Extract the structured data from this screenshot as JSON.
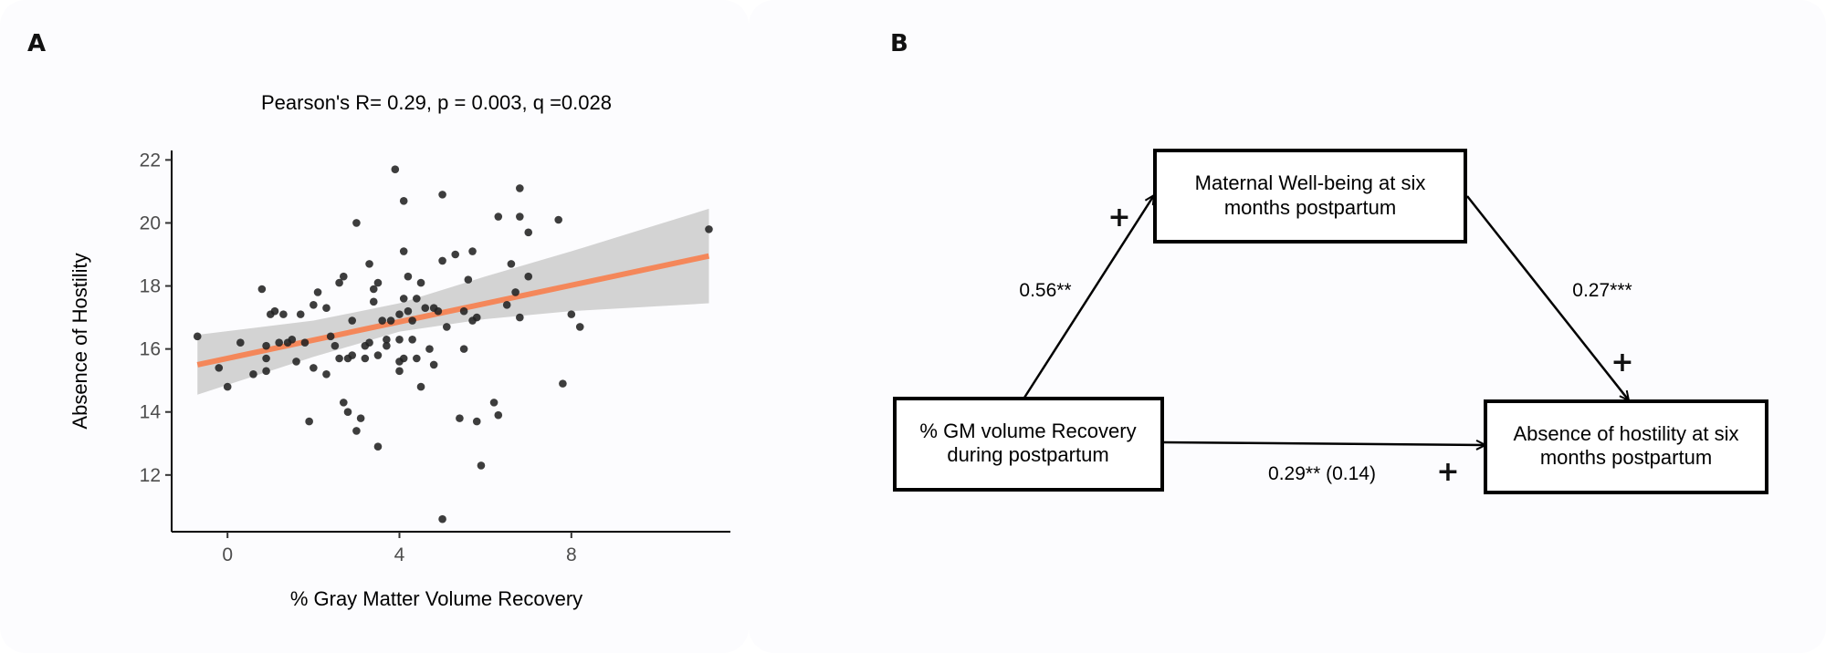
{
  "panels": {
    "a_label": "A",
    "b_label": "B"
  },
  "chart_data": {
    "type": "scatter",
    "title": "Pearson's R= 0.29, p = 0.003, q =0.028",
    "xlabel": "% Gray Matter Volume Recovery",
    "ylabel": "Absence of Hostility",
    "xlim": [
      -1.3,
      11.7
    ],
    "ylim": [
      10.2,
      22.3
    ],
    "xticks": [
      0,
      4,
      8
    ],
    "yticks": [
      12,
      14,
      16,
      18,
      20,
      22
    ],
    "grid": false,
    "fit_line": {
      "x": [
        -0.7,
        11.2
      ],
      "y": [
        15.5,
        18.95
      ],
      "color": "#f4875a"
    },
    "confidence_band": {
      "x": [
        -0.7,
        2.0,
        4.0,
        6.0,
        8.0,
        11.2
      ],
      "lower": [
        14.55,
        15.75,
        16.55,
        16.95,
        17.2,
        17.45
      ],
      "upper": [
        16.45,
        16.9,
        17.45,
        18.3,
        19.1,
        20.45
      ]
    },
    "points": [
      [
        -0.7,
        16.4
      ],
      [
        -0.2,
        15.4
      ],
      [
        0.0,
        14.8
      ],
      [
        0.3,
        16.2
      ],
      [
        0.6,
        15.2
      ],
      [
        0.8,
        17.9
      ],
      [
        0.9,
        16.1
      ],
      [
        0.9,
        15.7
      ],
      [
        0.9,
        15.3
      ],
      [
        1.0,
        17.1
      ],
      [
        1.1,
        17.2
      ],
      [
        1.2,
        16.2
      ],
      [
        1.3,
        17.1
      ],
      [
        1.4,
        16.2
      ],
      [
        1.5,
        16.3
      ],
      [
        1.6,
        15.6
      ],
      [
        1.7,
        17.1
      ],
      [
        1.8,
        16.2
      ],
      [
        1.9,
        13.7
      ],
      [
        2.0,
        15.4
      ],
      [
        2.0,
        17.4
      ],
      [
        2.1,
        17.8
      ],
      [
        2.3,
        17.3
      ],
      [
        2.3,
        15.2
      ],
      [
        2.4,
        16.4
      ],
      [
        2.5,
        16.1
      ],
      [
        2.6,
        18.1
      ],
      [
        2.6,
        15.7
      ],
      [
        2.7,
        18.3
      ],
      [
        2.7,
        14.3
      ],
      [
        2.8,
        15.7
      ],
      [
        2.8,
        14.0
      ],
      [
        2.9,
        16.9
      ],
      [
        2.9,
        15.8
      ],
      [
        3.0,
        20.0
      ],
      [
        3.0,
        13.4
      ],
      [
        3.1,
        13.8
      ],
      [
        3.2,
        16.1
      ],
      [
        3.2,
        15.7
      ],
      [
        3.3,
        18.7
      ],
      [
        3.3,
        16.2
      ],
      [
        3.4,
        17.9
      ],
      [
        3.4,
        17.5
      ],
      [
        3.5,
        18.1
      ],
      [
        3.5,
        15.8
      ],
      [
        3.5,
        12.9
      ],
      [
        3.6,
        16.9
      ],
      [
        3.7,
        16.3
      ],
      [
        3.7,
        16.1
      ],
      [
        3.8,
        16.9
      ],
      [
        3.9,
        21.7
      ],
      [
        4.0,
        17.1
      ],
      [
        4.0,
        16.3
      ],
      [
        4.0,
        15.6
      ],
      [
        4.0,
        15.3
      ],
      [
        4.1,
        20.7
      ],
      [
        4.1,
        19.1
      ],
      [
        4.1,
        17.6
      ],
      [
        4.1,
        15.7
      ],
      [
        4.2,
        18.3
      ],
      [
        4.2,
        17.2
      ],
      [
        4.3,
        16.9
      ],
      [
        4.3,
        16.3
      ],
      [
        4.4,
        17.6
      ],
      [
        4.4,
        15.7
      ],
      [
        4.5,
        18.1
      ],
      [
        4.5,
        14.8
      ],
      [
        4.6,
        17.3
      ],
      [
        4.7,
        16.0
      ],
      [
        4.8,
        17.3
      ],
      [
        4.8,
        15.5
      ],
      [
        4.9,
        17.2
      ],
      [
        5.0,
        20.9
      ],
      [
        5.0,
        18.8
      ],
      [
        5.0,
        10.6
      ],
      [
        5.1,
        16.7
      ],
      [
        5.3,
        19.0
      ],
      [
        5.4,
        13.8
      ],
      [
        5.5,
        17.2
      ],
      [
        5.5,
        16.0
      ],
      [
        5.6,
        18.2
      ],
      [
        5.7,
        19.1
      ],
      [
        5.7,
        16.9
      ],
      [
        5.8,
        17.0
      ],
      [
        5.8,
        13.7
      ],
      [
        5.9,
        12.3
      ],
      [
        6.2,
        14.3
      ],
      [
        6.3,
        13.9
      ],
      [
        6.3,
        20.2
      ],
      [
        6.5,
        17.4
      ],
      [
        6.6,
        18.7
      ],
      [
        6.7,
        17.8
      ],
      [
        6.8,
        21.1
      ],
      [
        6.8,
        20.2
      ],
      [
        6.8,
        17.0
      ],
      [
        7.0,
        19.7
      ],
      [
        7.0,
        18.3
      ],
      [
        7.7,
        20.1
      ],
      [
        7.8,
        14.9
      ],
      [
        8.0,
        17.1
      ],
      [
        8.2,
        16.7
      ],
      [
        11.2,
        19.8
      ]
    ]
  },
  "diagram": {
    "box_top": [
      "Maternal Well-being at six",
      "months postpartum"
    ],
    "box_left": [
      "% GM volume Recovery",
      "during postpartum"
    ],
    "box_right": [
      "Absence of hostility at six",
      "months postpartum"
    ],
    "coef_left": "0.56**",
    "coef_right": "0.27***",
    "coef_direct": "0.29** (0.14)",
    "sign": "+"
  }
}
